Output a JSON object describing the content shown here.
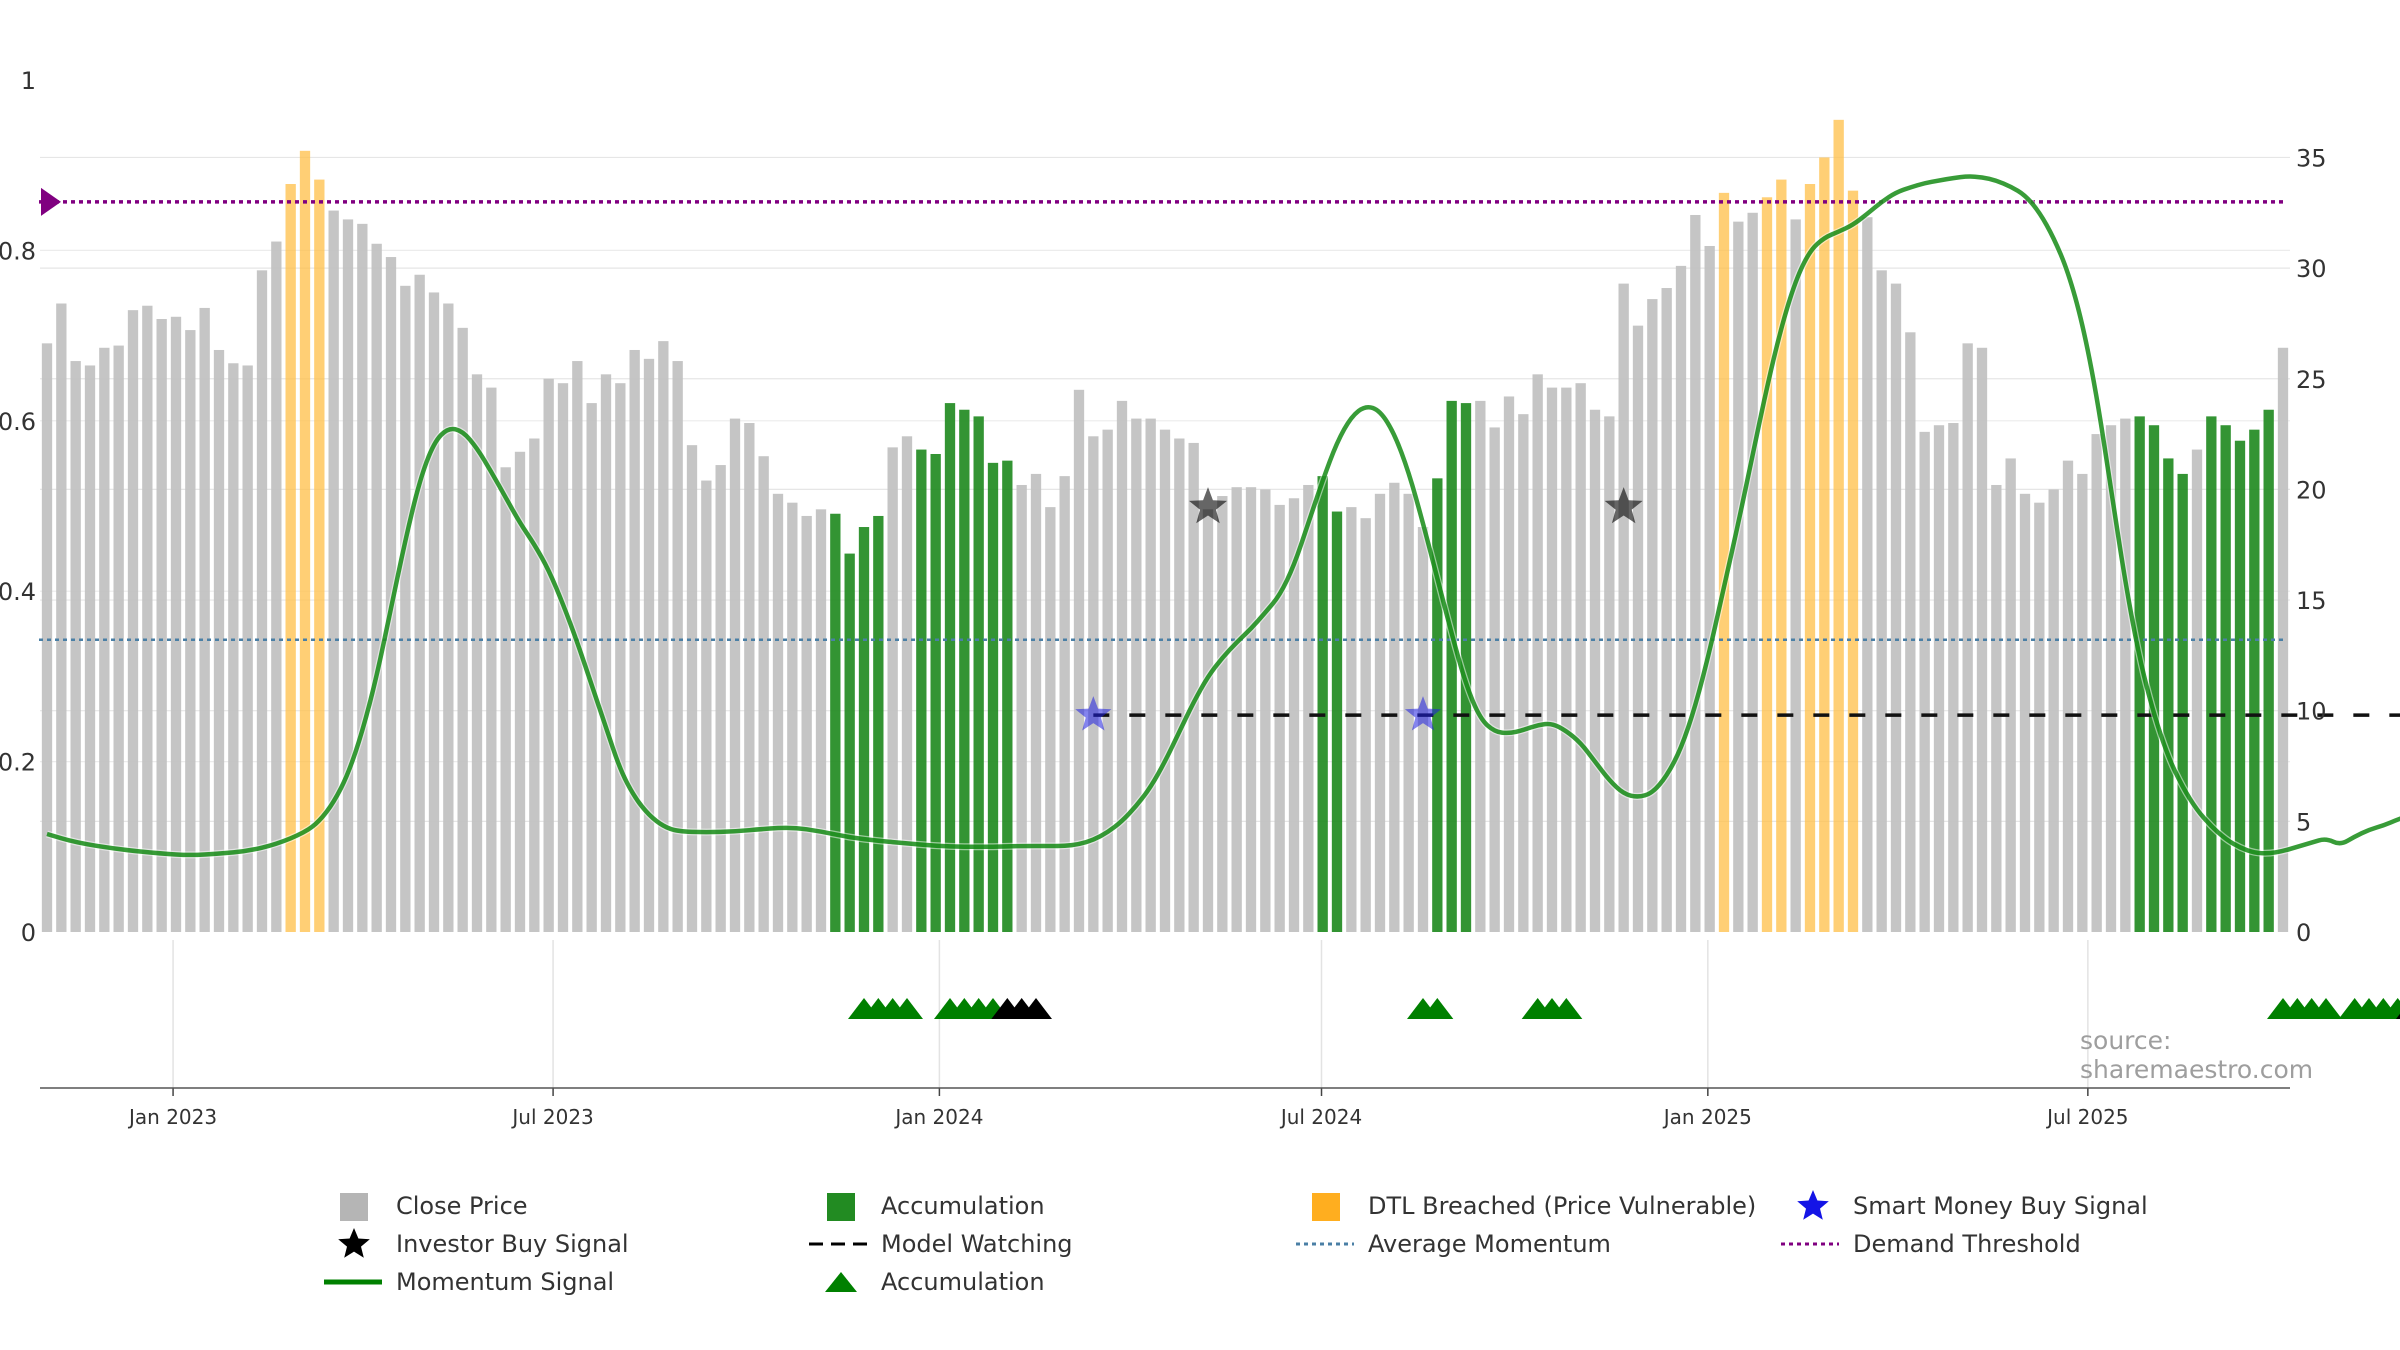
{
  "chart_data": {
    "type": "bar",
    "left_axis": {
      "ticks": [
        "0",
        "0.2",
        "0.4",
        "0.6",
        "0.8",
        "1"
      ],
      "range": [
        0,
        1
      ]
    },
    "right_axis": {
      "ticks": [
        "0",
        "5",
        "10",
        "15",
        "20",
        "25",
        "30",
        "35"
      ],
      "range": [
        0,
        38.5
      ]
    },
    "x_axis": {
      "ticks": [
        "Jan 2023",
        "Jul 2023",
        "Jan 2024",
        "Jul 2024",
        "Jan 2025",
        "Jul 2025"
      ],
      "start": "2022-11",
      "end": "2025-10"
    },
    "grid": true,
    "bars": [
      {
        "v": 26.6,
        "c": "close"
      },
      {
        "v": 28.4,
        "c": "close"
      },
      {
        "v": 25.8,
        "c": "close"
      },
      {
        "v": 25.6,
        "c": "close"
      },
      {
        "v": 26.4,
        "c": "close"
      },
      {
        "v": 26.5,
        "c": "close"
      },
      {
        "v": 28.1,
        "c": "close"
      },
      {
        "v": 28.3,
        "c": "close"
      },
      {
        "v": 27.7,
        "c": "close"
      },
      {
        "v": 27.8,
        "c": "close"
      },
      {
        "v": 27.2,
        "c": "close"
      },
      {
        "v": 28.2,
        "c": "close"
      },
      {
        "v": 26.3,
        "c": "close"
      },
      {
        "v": 25.7,
        "c": "close"
      },
      {
        "v": 25.6,
        "c": "close"
      },
      {
        "v": 29.9,
        "c": "close"
      },
      {
        "v": 31.2,
        "c": "close"
      },
      {
        "v": 33.8,
        "c": "dtl"
      },
      {
        "v": 35.3,
        "c": "dtl"
      },
      {
        "v": 34.0,
        "c": "dtl"
      },
      {
        "v": 32.6,
        "c": "close"
      },
      {
        "v": 32.2,
        "c": "close"
      },
      {
        "v": 32.0,
        "c": "close"
      },
      {
        "v": 31.1,
        "c": "close"
      },
      {
        "v": 30.5,
        "c": "close"
      },
      {
        "v": 29.2,
        "c": "close"
      },
      {
        "v": 29.7,
        "c": "close"
      },
      {
        "v": 28.9,
        "c": "close"
      },
      {
        "v": 28.4,
        "c": "close"
      },
      {
        "v": 27.3,
        "c": "close"
      },
      {
        "v": 25.2,
        "c": "close"
      },
      {
        "v": 24.6,
        "c": "close"
      },
      {
        "v": 21.0,
        "c": "close"
      },
      {
        "v": 21.7,
        "c": "close"
      },
      {
        "v": 22.3,
        "c": "close"
      },
      {
        "v": 25.0,
        "c": "close"
      },
      {
        "v": 24.8,
        "c": "close"
      },
      {
        "v": 25.8,
        "c": "close"
      },
      {
        "v": 23.9,
        "c": "close"
      },
      {
        "v": 25.2,
        "c": "close"
      },
      {
        "v": 24.8,
        "c": "close"
      },
      {
        "v": 26.3,
        "c": "close"
      },
      {
        "v": 25.9,
        "c": "close"
      },
      {
        "v": 26.7,
        "c": "close"
      },
      {
        "v": 25.8,
        "c": "close"
      },
      {
        "v": 22.0,
        "c": "close"
      },
      {
        "v": 20.4,
        "c": "close"
      },
      {
        "v": 21.1,
        "c": "close"
      },
      {
        "v": 23.2,
        "c": "close"
      },
      {
        "v": 23.0,
        "c": "close"
      },
      {
        "v": 21.5,
        "c": "close"
      },
      {
        "v": 19.8,
        "c": "close"
      },
      {
        "v": 19.4,
        "c": "close"
      },
      {
        "v": 18.8,
        "c": "close"
      },
      {
        "v": 19.1,
        "c": "close"
      },
      {
        "v": 18.9,
        "c": "acc"
      },
      {
        "v": 17.1,
        "c": "acc"
      },
      {
        "v": 18.3,
        "c": "acc"
      },
      {
        "v": 18.8,
        "c": "acc"
      },
      {
        "v": 21.9,
        "c": "close"
      },
      {
        "v": 22.4,
        "c": "close"
      },
      {
        "v": 21.8,
        "c": "acc"
      },
      {
        "v": 21.6,
        "c": "acc"
      },
      {
        "v": 23.9,
        "c": "acc"
      },
      {
        "v": 23.6,
        "c": "acc"
      },
      {
        "v": 23.3,
        "c": "acc"
      },
      {
        "v": 21.2,
        "c": "acc"
      },
      {
        "v": 21.3,
        "c": "acc"
      },
      {
        "v": 20.2,
        "c": "close"
      },
      {
        "v": 20.7,
        "c": "close"
      },
      {
        "v": 19.2,
        "c": "close"
      },
      {
        "v": 20.6,
        "c": "close"
      },
      {
        "v": 24.5,
        "c": "close"
      },
      {
        "v": 22.4,
        "c": "close"
      },
      {
        "v": 22.7,
        "c": "close"
      },
      {
        "v": 24.0,
        "c": "close"
      },
      {
        "v": 23.2,
        "c": "close"
      },
      {
        "v": 23.2,
        "c": "close"
      },
      {
        "v": 22.7,
        "c": "close"
      },
      {
        "v": 22.3,
        "c": "close"
      },
      {
        "v": 22.1,
        "c": "close"
      },
      {
        "v": 19.1,
        "c": "close"
      },
      {
        "v": 19.7,
        "c": "close"
      },
      {
        "v": 20.1,
        "c": "close"
      },
      {
        "v": 20.1,
        "c": "close"
      },
      {
        "v": 20.0,
        "c": "close"
      },
      {
        "v": 19.3,
        "c": "close"
      },
      {
        "v": 19.6,
        "c": "close"
      },
      {
        "v": 20.2,
        "c": "close"
      },
      {
        "v": 20.6,
        "c": "acc"
      },
      {
        "v": 19.0,
        "c": "acc"
      },
      {
        "v": 19.2,
        "c": "close"
      },
      {
        "v": 18.7,
        "c": "close"
      },
      {
        "v": 19.8,
        "c": "close"
      },
      {
        "v": 20.3,
        "c": "close"
      },
      {
        "v": 19.8,
        "c": "close"
      },
      {
        "v": 18.3,
        "c": "close"
      },
      {
        "v": 20.5,
        "c": "acc"
      },
      {
        "v": 24.0,
        "c": "acc"
      },
      {
        "v": 23.9,
        "c": "acc"
      },
      {
        "v": 24.0,
        "c": "close"
      },
      {
        "v": 22.8,
        "c": "close"
      },
      {
        "v": 24.2,
        "c": "close"
      },
      {
        "v": 23.4,
        "c": "close"
      },
      {
        "v": 25.2,
        "c": "close"
      },
      {
        "v": 24.6,
        "c": "close"
      },
      {
        "v": 24.6,
        "c": "close"
      },
      {
        "v": 24.8,
        "c": "close"
      },
      {
        "v": 23.6,
        "c": "close"
      },
      {
        "v": 23.3,
        "c": "close"
      },
      {
        "v": 29.3,
        "c": "close"
      },
      {
        "v": 27.4,
        "c": "close"
      },
      {
        "v": 28.6,
        "c": "close"
      },
      {
        "v": 29.1,
        "c": "close"
      },
      {
        "v": 30.1,
        "c": "close"
      },
      {
        "v": 32.4,
        "c": "close"
      },
      {
        "v": 31.0,
        "c": "close"
      },
      {
        "v": 33.4,
        "c": "dtl"
      },
      {
        "v": 32.1,
        "c": "close"
      },
      {
        "v": 32.5,
        "c": "close"
      },
      {
        "v": 33.2,
        "c": "dtl"
      },
      {
        "v": 34.0,
        "c": "dtl"
      },
      {
        "v": 32.2,
        "c": "close"
      },
      {
        "v": 33.8,
        "c": "dtl"
      },
      {
        "v": 35.0,
        "c": "dtl"
      },
      {
        "v": 36.7,
        "c": "dtl"
      },
      {
        "v": 33.5,
        "c": "dtl"
      },
      {
        "v": 32.3,
        "c": "close"
      },
      {
        "v": 29.9,
        "c": "close"
      },
      {
        "v": 29.3,
        "c": "close"
      },
      {
        "v": 27.1,
        "c": "close"
      },
      {
        "v": 22.6,
        "c": "close"
      },
      {
        "v": 22.9,
        "c": "close"
      },
      {
        "v": 23.0,
        "c": "close"
      },
      {
        "v": 26.6,
        "c": "close"
      },
      {
        "v": 26.4,
        "c": "close"
      },
      {
        "v": 20.2,
        "c": "close"
      },
      {
        "v": 21.4,
        "c": "close"
      },
      {
        "v": 19.8,
        "c": "close"
      },
      {
        "v": 19.4,
        "c": "close"
      },
      {
        "v": 20.0,
        "c": "close"
      },
      {
        "v": 21.3,
        "c": "close"
      },
      {
        "v": 20.7,
        "c": "close"
      },
      {
        "v": 22.5,
        "c": "close"
      },
      {
        "v": 22.9,
        "c": "close"
      },
      {
        "v": 23.2,
        "c": "close"
      },
      {
        "v": 23.3,
        "c": "acc"
      },
      {
        "v": 22.9,
        "c": "acc"
      },
      {
        "v": 21.4,
        "c": "acc"
      },
      {
        "v": 20.7,
        "c": "acc"
      },
      {
        "v": 21.8,
        "c": "close"
      },
      {
        "v": 23.3,
        "c": "acc"
      },
      {
        "v": 22.9,
        "c": "acc"
      },
      {
        "v": 22.2,
        "c": "acc"
      },
      {
        "v": 22.7,
        "c": "acc"
      },
      {
        "v": 23.6,
        "c": "acc"
      },
      {
        "v": 26.4,
        "c": "close"
      }
    ],
    "momentum": [
      [
        0,
        0.115
      ],
      [
        2,
        0.105
      ],
      [
        5,
        0.097
      ],
      [
        8,
        0.092
      ],
      [
        10,
        0.09
      ],
      [
        12,
        0.092
      ],
      [
        14,
        0.095
      ],
      [
        16,
        0.103
      ],
      [
        18,
        0.117
      ],
      [
        19,
        0.13
      ],
      [
        20,
        0.152
      ],
      [
        21,
        0.185
      ],
      [
        22,
        0.235
      ],
      [
        23,
        0.3
      ],
      [
        24,
        0.38
      ],
      [
        25,
        0.46
      ],
      [
        26,
        0.53
      ],
      [
        27,
        0.575
      ],
      [
        28,
        0.592
      ],
      [
        29,
        0.588
      ],
      [
        30,
        0.568
      ],
      [
        31,
        0.54
      ],
      [
        32,
        0.51
      ],
      [
        33,
        0.48
      ],
      [
        34,
        0.455
      ],
      [
        35,
        0.425
      ],
      [
        36,
        0.385
      ],
      [
        37,
        0.34
      ],
      [
        38,
        0.29
      ],
      [
        39,
        0.24
      ],
      [
        40,
        0.19
      ],
      [
        41,
        0.158
      ],
      [
        42,
        0.137
      ],
      [
        43,
        0.124
      ],
      [
        44,
        0.118
      ],
      [
        46,
        0.117
      ],
      [
        48,
        0.118
      ],
      [
        50,
        0.121
      ],
      [
        52,
        0.123
      ],
      [
        54,
        0.118
      ],
      [
        56,
        0.111
      ],
      [
        58,
        0.107
      ],
      [
        60,
        0.104
      ],
      [
        62,
        0.101
      ],
      [
        64,
        0.1
      ],
      [
        66,
        0.1
      ],
      [
        68,
        0.101
      ],
      [
        70,
        0.101
      ],
      [
        71,
        0.101
      ],
      [
        72,
        0.103
      ],
      [
        73,
        0.108
      ],
      [
        74,
        0.117
      ],
      [
        75,
        0.13
      ],
      [
        76,
        0.148
      ],
      [
        77,
        0.17
      ],
      [
        78,
        0.2
      ],
      [
        79,
        0.235
      ],
      [
        80,
        0.27
      ],
      [
        81,
        0.3
      ],
      [
        82,
        0.322
      ],
      [
        83,
        0.34
      ],
      [
        84,
        0.356
      ],
      [
        85,
        0.375
      ],
      [
        86,
        0.395
      ],
      [
        87,
        0.43
      ],
      [
        88,
        0.48
      ],
      [
        89,
        0.53
      ],
      [
        90,
        0.575
      ],
      [
        91,
        0.605
      ],
      [
        92,
        0.618
      ],
      [
        93,
        0.612
      ],
      [
        94,
        0.585
      ],
      [
        95,
        0.54
      ],
      [
        96,
        0.48
      ],
      [
        97,
        0.415
      ],
      [
        98,
        0.35
      ],
      [
        99,
        0.29
      ],
      [
        100,
        0.25
      ],
      [
        101,
        0.235
      ],
      [
        102,
        0.233
      ],
      [
        103,
        0.237
      ],
      [
        104,
        0.243
      ],
      [
        105,
        0.245
      ],
      [
        106,
        0.236
      ],
      [
        107,
        0.222
      ],
      [
        108,
        0.2
      ],
      [
        109,
        0.178
      ],
      [
        110,
        0.162
      ],
      [
        111,
        0.158
      ],
      [
        112,
        0.163
      ],
      [
        113,
        0.183
      ],
      [
        114,
        0.215
      ],
      [
        115,
        0.265
      ],
      [
        116,
        0.33
      ],
      [
        117,
        0.405
      ],
      [
        118,
        0.48
      ],
      [
        119,
        0.56
      ],
      [
        120,
        0.64
      ],
      [
        121,
        0.71
      ],
      [
        122,
        0.765
      ],
      [
        123,
        0.8
      ],
      [
        124,
        0.815
      ],
      [
        125,
        0.822
      ],
      [
        126,
        0.83
      ],
      [
        127,
        0.843
      ],
      [
        128,
        0.857
      ],
      [
        129,
        0.868
      ],
      [
        130,
        0.874
      ],
      [
        131,
        0.879
      ],
      [
        132,
        0.882
      ],
      [
        133,
        0.885
      ],
      [
        134,
        0.887
      ],
      [
        135,
        0.886
      ],
      [
        136,
        0.882
      ],
      [
        137,
        0.875
      ],
      [
        138,
        0.865
      ],
      [
        139,
        0.845
      ],
      [
        140,
        0.815
      ],
      [
        141,
        0.775
      ],
      [
        142,
        0.715
      ],
      [
        143,
        0.63
      ],
      [
        144,
        0.52
      ],
      [
        145,
        0.41
      ],
      [
        146,
        0.32
      ],
      [
        147,
        0.255
      ],
      [
        148,
        0.205
      ],
      [
        149,
        0.17
      ],
      [
        150,
        0.143
      ],
      [
        151,
        0.124
      ],
      [
        152,
        0.109
      ],
      [
        153,
        0.099
      ],
      [
        154,
        0.093
      ],
      [
        155,
        0.092
      ],
      [
        156,
        0.095
      ],
      [
        157,
        0.1
      ],
      [
        158,
        0.105
      ],
      [
        159,
        0.11
      ],
      [
        160,
        0.102
      ],
      [
        161,
        0.112
      ],
      [
        162,
        0.12
      ],
      [
        163,
        0.125
      ],
      [
        164,
        0.132
      ],
      [
        165,
        0.138
      ],
      [
        166,
        0.14
      ],
      [
        167,
        0.16
      ]
    ],
    "average_momentum": 0.343,
    "demand_threshold": 0.857,
    "model_watching": {
      "from_index": 73,
      "to_index": 167,
      "level_right_axis": 9.8
    },
    "smart_money_signals": [
      {
        "i": 73,
        "v": 9.8
      },
      {
        "i": 96,
        "v": 9.8
      }
    ],
    "investor_signals": [
      {
        "i": 81,
        "v": 19.2
      },
      {
        "i": 110,
        "v": 19.2
      }
    ],
    "triangles": [
      {
        "i": 57,
        "c": "green"
      },
      {
        "i": 58,
        "c": "green"
      },
      {
        "i": 59,
        "c": "green"
      },
      {
        "i": 60,
        "c": "green"
      },
      {
        "i": 63,
        "c": "green"
      },
      {
        "i": 64,
        "c": "green"
      },
      {
        "i": 65,
        "c": "green"
      },
      {
        "i": 66,
        "c": "green"
      },
      {
        "i": 67,
        "c": "black"
      },
      {
        "i": 68,
        "c": "black"
      },
      {
        "i": 69,
        "c": "black"
      },
      {
        "i": 96,
        "c": "green"
      },
      {
        "i": 97,
        "c": "green"
      },
      {
        "i": 104,
        "c": "green"
      },
      {
        "i": 105,
        "c": "green"
      },
      {
        "i": 106,
        "c": "green"
      },
      {
        "i": 156,
        "c": "green"
      },
      {
        "i": 157,
        "c": "green"
      },
      {
        "i": 158,
        "c": "green"
      },
      {
        "i": 159,
        "c": "green"
      },
      {
        "i": 161,
        "c": "green"
      },
      {
        "i": 162,
        "c": "green"
      },
      {
        "i": 163,
        "c": "green"
      },
      {
        "i": 164,
        "c": "green"
      },
      {
        "i": 165,
        "c": "black"
      }
    ],
    "colors": {
      "close": "#c2c2c2",
      "accumulation": "#228b22",
      "dtl": "#ffbf47",
      "momentum": "#008000",
      "average": "#4a7fa5",
      "threshold": "#800080",
      "smart_money": "#1f1fe0",
      "investor": "#000000"
    }
  },
  "source_label": "source: sharemaestro.com",
  "legend": [
    {
      "label": "Close Price"
    },
    {
      "label": "Accumulation"
    },
    {
      "label": "DTL Breached (Price Vulnerable)"
    },
    {
      "label": "Smart Money Buy Signal"
    },
    {
      "label": "Investor Buy Signal"
    },
    {
      "label": "Model Watching"
    },
    {
      "label": "Average Momentum"
    },
    {
      "label": "Demand Threshold"
    },
    {
      "label": "Momentum Signal"
    },
    {
      "label": "Accumulation"
    }
  ]
}
